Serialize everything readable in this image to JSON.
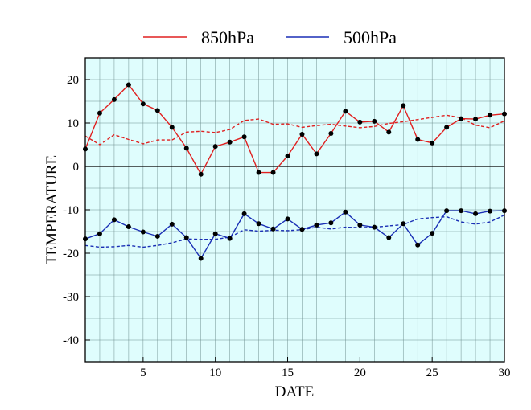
{
  "chart_data": {
    "type": "line",
    "xlabel": "DATE",
    "ylabel": "TEMPERATURE",
    "xlim": [
      1,
      30
    ],
    "ylim": [
      -45,
      25
    ],
    "x_ticks": [
      5,
      10,
      15,
      20,
      25,
      30
    ],
    "y_ticks": [
      20,
      10,
      0,
      -10,
      -20,
      -30,
      -40
    ],
    "grid": true,
    "legend_position": "top",
    "plot_background": "#dffdfd",
    "zero_line": true,
    "x": [
      1,
      2,
      3,
      4,
      5,
      6,
      7,
      8,
      9,
      10,
      11,
      12,
      13,
      14,
      15,
      16,
      17,
      18,
      19,
      20,
      21,
      22,
      23,
      24,
      25,
      26,
      27,
      28,
      29,
      30
    ],
    "series": [
      {
        "name": "850hPa",
        "color": "#e02020",
        "style": "solid",
        "markers": true,
        "values": [
          4.0,
          12.3,
          15.4,
          18.8,
          14.4,
          12.9,
          9.0,
          4.2,
          -1.8,
          4.6,
          5.6,
          6.8,
          -1.4,
          -1.4,
          2.4,
          7.4,
          2.9,
          7.6,
          12.7,
          10.2,
          10.4,
          7.9,
          14.0,
          6.2,
          5.4,
          9.0,
          11.0,
          10.9,
          11.8,
          12.1
        ]
      },
      {
        "name": "500hPa",
        "color": "#1a2fb5",
        "style": "solid",
        "markers": true,
        "values": [
          -16.7,
          -15.5,
          -12.3,
          -13.9,
          -15.1,
          -16.1,
          -13.3,
          -16.4,
          -21.2,
          -15.5,
          -16.6,
          -10.9,
          -13.2,
          -14.4,
          -12.1,
          -14.5,
          -13.5,
          -13.0,
          -10.5,
          -13.5,
          -14.0,
          -16.4,
          -13.2,
          -18.1,
          -15.4,
          -10.2,
          -10.2,
          -10.9,
          -10.3,
          -10.2
        ]
      },
      {
        "color": "#e02020",
        "style": "dashed",
        "markers": false,
        "values": [
          7.0,
          5.0,
          7.3,
          6.2,
          5.2,
          6.1,
          6.1,
          7.9,
          8.1,
          7.8,
          8.5,
          10.6,
          10.9,
          9.7,
          9.8,
          9.0,
          9.4,
          9.7,
          9.3,
          8.9,
          9.2,
          9.9,
          10.3,
          10.8,
          11.3,
          11.8,
          11.2,
          9.5,
          8.9,
          10.5
        ]
      },
      {
        "color": "#1a2fb5",
        "style": "dashed",
        "markers": false,
        "values": [
          -18.2,
          -18.6,
          -18.5,
          -18.2,
          -18.6,
          -18.2,
          -17.6,
          -16.7,
          -16.8,
          -16.8,
          -16.3,
          -14.6,
          -14.9,
          -14.7,
          -14.8,
          -14.6,
          -14.0,
          -14.4,
          -14.0,
          -14.1,
          -14.0,
          -13.7,
          -13.4,
          -12.1,
          -11.8,
          -11.6,
          -12.8,
          -13.3,
          -12.8,
          -11.2
        ]
      }
    ]
  }
}
